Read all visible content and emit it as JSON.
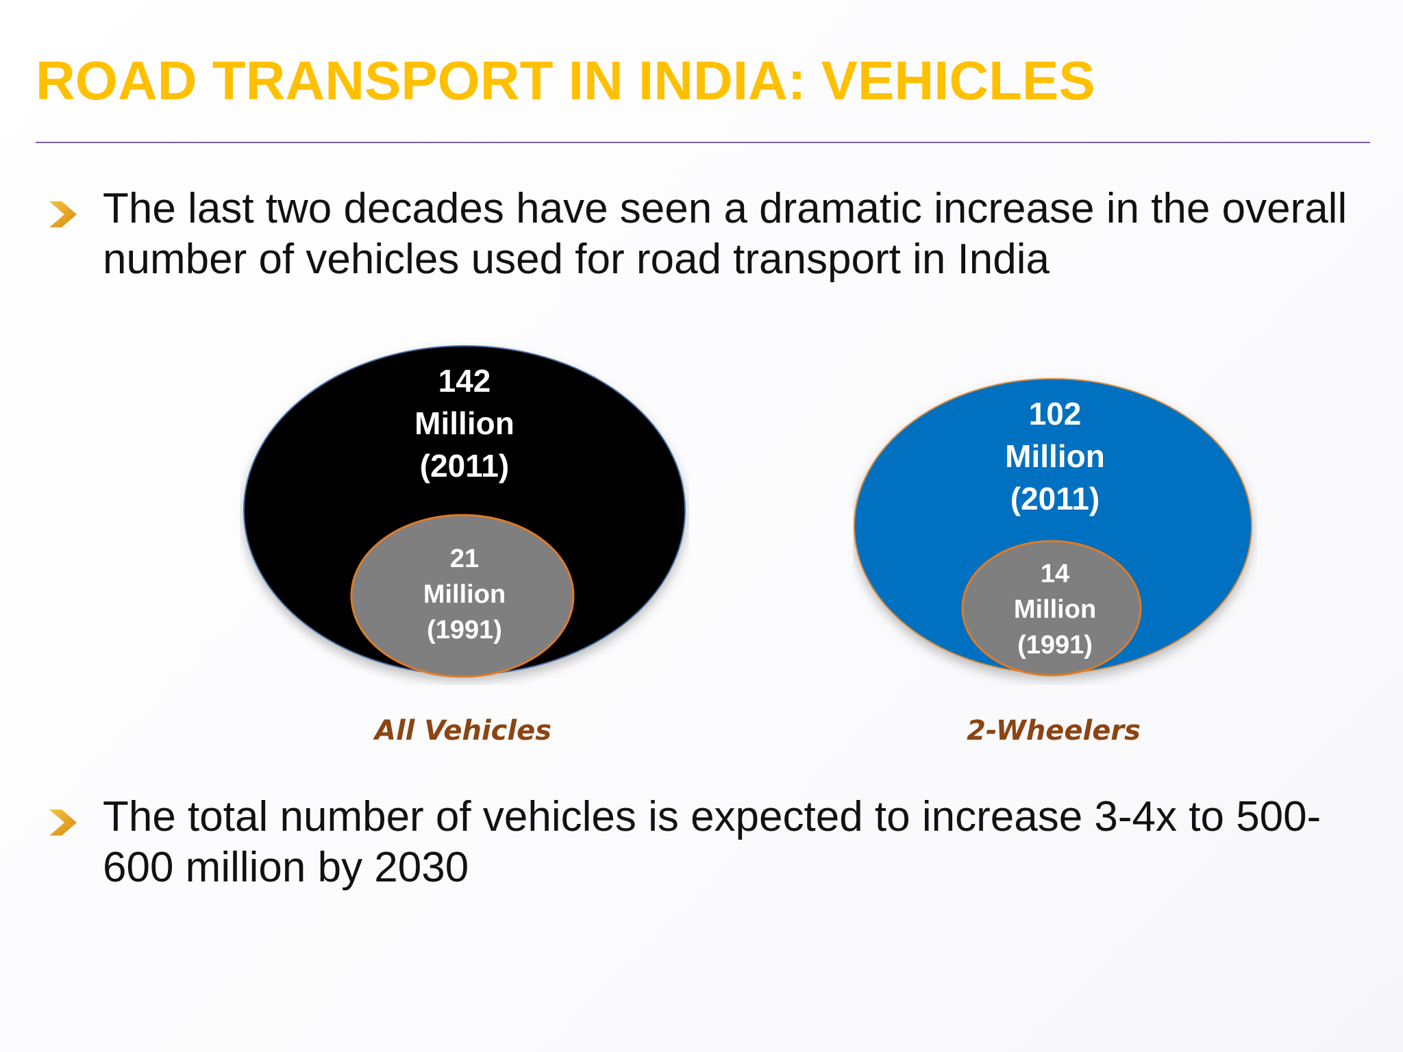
{
  "title": "ROAD TRANSPORT IN INDIA: VEHICLES",
  "bullets": [
    {
      "text": "The last two decades have seen a dramatic increase in the overall number of vehicles used for road transport in India"
    },
    {
      "text": "The total number of vehicles is expected to increase 3-4x to 500-600 million by 2030"
    }
  ],
  "diagrams": [
    {
      "caption": "All Vehicles",
      "outer": {
        "value": "142",
        "unit": "Million",
        "year": "(2011)",
        "color": "#000000"
      },
      "inner": {
        "value": "21",
        "unit": "Million",
        "year": "(1991)",
        "color": "#7f7f7f"
      }
    },
    {
      "caption": "2-Wheelers",
      "outer": {
        "value": "102",
        "unit": "Million",
        "year": "(2011)",
        "color": "#0070C0"
      },
      "inner": {
        "value": "14",
        "unit": "Million",
        "year": "(1991)",
        "color": "#7f7f7f"
      }
    }
  ],
  "colors": {
    "title": "#FFC000",
    "bullet_marker": "#E8A317",
    "caption": "#8B4513",
    "inner_outline": "#E07B24"
  }
}
